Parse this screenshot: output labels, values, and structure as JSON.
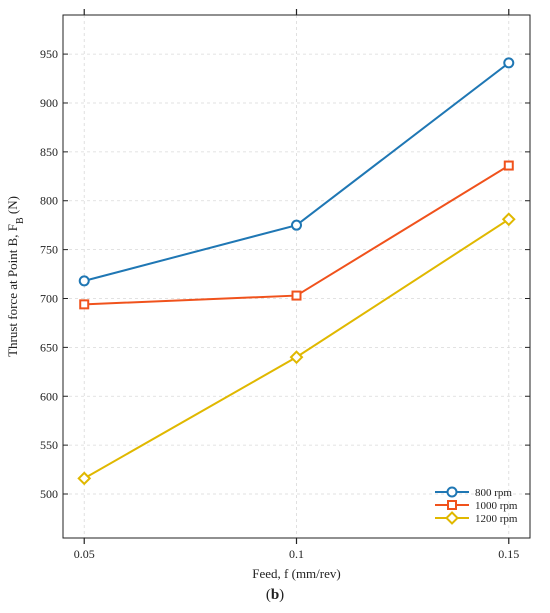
{
  "caption": {
    "open": "(",
    "letter": "b",
    "close": ")"
  },
  "chart_data": {
    "type": "line",
    "title": "",
    "xlabel": "Feed, f (mm/rev)",
    "ylabel": {
      "main": "Thrust force at Point B, F",
      "subscript": "B",
      "unit": " (N)"
    },
    "x": [
      0.05,
      0.1,
      0.15
    ],
    "x_tick_labels": [
      "0.05",
      "0.1",
      "0.15"
    ],
    "xlim": [
      0.045,
      0.155
    ],
    "ylim": [
      455,
      990
    ],
    "y_ticks": [
      500,
      550,
      600,
      650,
      700,
      750,
      800,
      850,
      900,
      950
    ],
    "grid": true,
    "legend_position": "bottom-right",
    "series": [
      {
        "name": "800 rpm",
        "values": [
          718,
          775,
          941
        ],
        "color": "#1f77b4",
        "marker": "circle"
      },
      {
        "name": "1000 rpm",
        "values": [
          694,
          703,
          836
        ],
        "color": "#f0521c",
        "marker": "square"
      },
      {
        "name": "1200 rpm",
        "values": [
          516,
          640,
          781
        ],
        "color": "#e0b800",
        "marker": "diamond"
      }
    ]
  }
}
